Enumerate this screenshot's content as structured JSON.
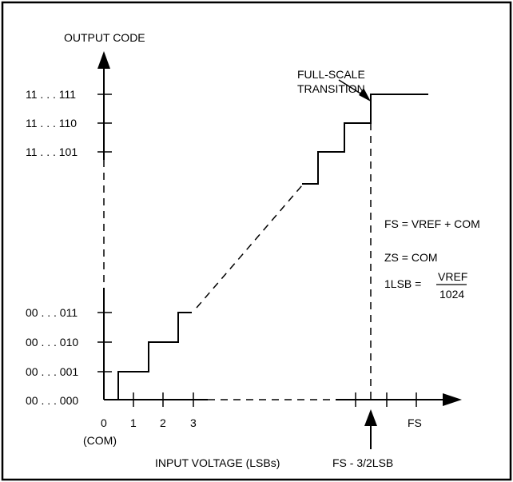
{
  "diagram": {
    "y_axis_title": "OUTPUT CODE",
    "x_axis_title": "INPUT VOLTAGE (LSBs)",
    "y_codes": [
      "11 . . . 111",
      "11 . . . 110",
      "11 . . . 101",
      "00 . . . 011",
      "00 . . . 010",
      "00 . . . 001",
      "00 . . . 000"
    ],
    "x_ticks": [
      "0",
      "1",
      "2",
      "3",
      "FS"
    ],
    "com_label": "(COM)",
    "fs_transition_label": "FS - 3/2LSB",
    "full_scale_label_line1": "FULL-SCALE",
    "full_scale_label_line2": "TRANSITION",
    "eq_fs": "FS = VREF + COM",
    "eq_zs": "ZS = COM",
    "eq_lsb_prefix": "1LSB =",
    "eq_lsb_num": "VREF",
    "eq_lsb_den": "1024"
  }
}
